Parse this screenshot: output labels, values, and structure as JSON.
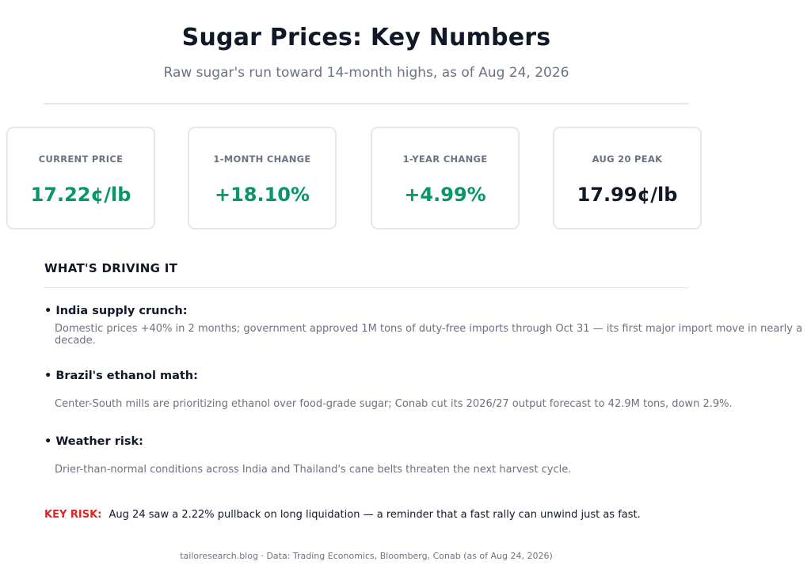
{
  "header": {
    "title": "Sugar Prices: Key Numbers",
    "subtitle": "Raw sugar's run toward 14-month highs, as of Aug 24, 2026"
  },
  "metrics": [
    {
      "label": "CURRENT PRICE",
      "value": "17.22¢/lb",
      "color": "#059669"
    },
    {
      "label": "1-MONTH CHANGE",
      "value": "+18.10%",
      "color": "#059669"
    },
    {
      "label": "1-YEAR CHANGE",
      "value": "+4.99%",
      "color": "#059669"
    },
    {
      "label": "AUG 20 PEAK",
      "value": "17.99¢/lb",
      "color": "#111827"
    }
  ],
  "drivers": {
    "heading": "WHAT'S DRIVING IT",
    "items": [
      {
        "title": "• India supply crunch:",
        "description": "Domestic prices +40% in 2 months; government approved 1M tons of duty-free imports through Oct 31 — its first major import move in nearly a decade."
      },
      {
        "title": "• Brazil's ethanol math:",
        "description": "Center-South mills are prioritizing ethanol over food-grade sugar; Conab cut its 2026/27 output forecast to 42.9M tons, down 2.9%."
      },
      {
        "title": "• Weather risk:",
        "description": "Drier-than-normal conditions across India and Thailand's cane belts threaten the next harvest cycle."
      }
    ]
  },
  "key_risk": {
    "label": "KEY RISK:",
    "text": "Aug 24 saw a 2.22% pullback on long liquidation — a reminder that a fast rally can unwind just as fast.",
    "color": "#dc2626"
  },
  "footer": {
    "text": "tailoresearch.blog  ·  Data: Trading Economics, Bloomberg, Conab (as of Aug 24, 2026)"
  }
}
